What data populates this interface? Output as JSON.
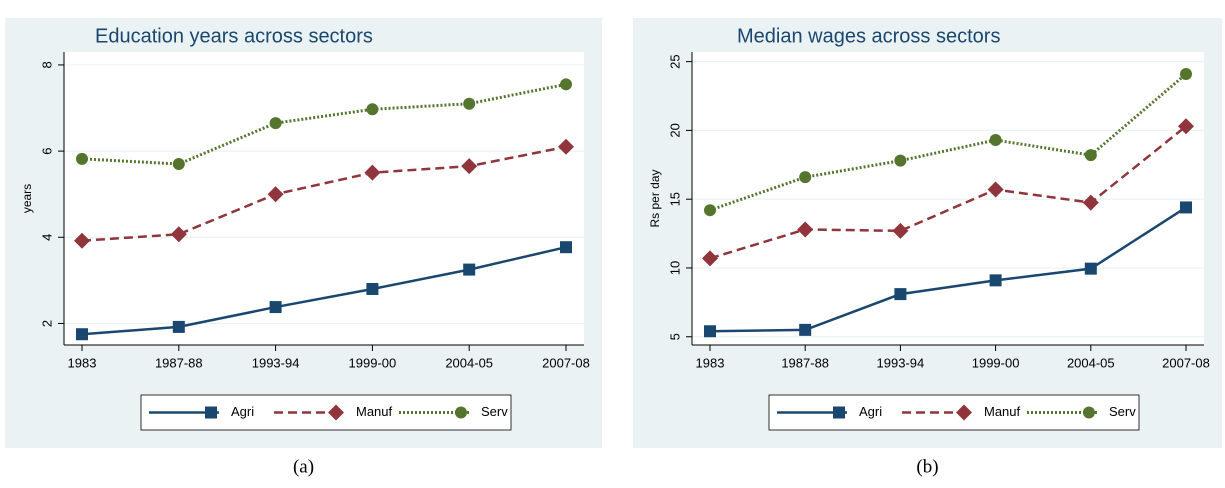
{
  "chart_data": [
    {
      "type": "line",
      "title": "Education years across sectors",
      "y_label": "years",
      "caption": "(a)",
      "categories": [
        "1983",
        "1987-88",
        "1993-94",
        "1999-00",
        "2004-05",
        "2007-08"
      ],
      "ylim": [
        1.5,
        8.3
      ],
      "yticks": [
        2,
        4,
        6,
        8
      ],
      "grid": true,
      "series": [
        {
          "name": "Agri",
          "color": "#1a476f",
          "values": [
            1.75,
            1.92,
            2.38,
            2.8,
            3.25,
            3.77
          ]
        },
        {
          "name": "Manuf",
          "color": "#90353b",
          "values": [
            3.92,
            4.07,
            5.0,
            5.5,
            5.65,
            6.1
          ]
        },
        {
          "name": "Serv",
          "color": "#55752f",
          "values": [
            5.82,
            5.7,
            6.65,
            6.97,
            7.1,
            7.55
          ]
        }
      ]
    },
    {
      "type": "line",
      "title": "Median wages across sectors",
      "y_label": "Rs per day",
      "caption": "(b)",
      "categories": [
        "1983",
        "1987-88",
        "1993-94",
        "1999-00",
        "2004-05",
        "2007-08"
      ],
      "ylim": [
        4.4,
        25.7
      ],
      "yticks": [
        5,
        10,
        15,
        20,
        25
      ],
      "grid": true,
      "series": [
        {
          "name": "Agri",
          "color": "#1a476f",
          "values": [
            5.4,
            5.5,
            8.1,
            9.1,
            9.95,
            14.4
          ]
        },
        {
          "name": "Manuf",
          "color": "#90353b",
          "values": [
            10.7,
            12.8,
            12.7,
            15.7,
            14.75,
            20.3
          ]
        },
        {
          "name": "Serv",
          "color": "#55752f",
          "values": [
            14.2,
            16.6,
            17.8,
            19.3,
            18.2,
            24.1
          ]
        }
      ]
    }
  ]
}
